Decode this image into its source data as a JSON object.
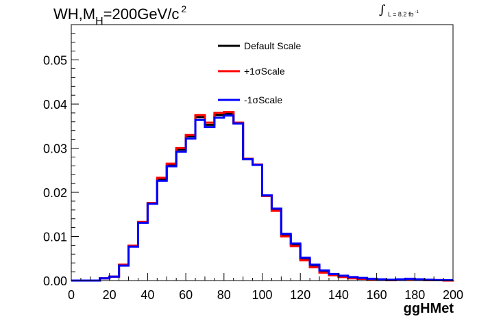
{
  "chart_data": {
    "type": "line",
    "title": {
      "prefix": "WH,M",
      "sub": "H",
      "mid": "=200GeV/c",
      "sup": "2"
    },
    "luminosity": {
      "text": "L = 8.2 fb",
      "sup": "-1"
    },
    "xlabel": "ggHMet",
    "ylabel": "",
    "xlim": [
      0,
      200
    ],
    "ylim": [
      0,
      0.058
    ],
    "xticks": [
      0,
      20,
      40,
      60,
      80,
      100,
      120,
      140,
      160,
      180,
      200
    ],
    "yticks": [
      0.0,
      0.01,
      0.02,
      0.03,
      0.04,
      0.05
    ],
    "ytick_labels": [
      "0.00",
      "0.01",
      "0.02",
      "0.03",
      "0.04",
      "0.05"
    ],
    "bin_width": 5,
    "bin_edges_start": 0,
    "legend_position": "top-center",
    "series": [
      {
        "name": "Default Scale",
        "color": "#000000",
        "values": [
          0,
          0,
          0,
          0.0005,
          0.0009,
          0.0035,
          0.0078,
          0.0132,
          0.0175,
          0.023,
          0.0262,
          0.0297,
          0.0327,
          0.037,
          0.0353,
          0.0375,
          0.0378,
          0.0357,
          0.0275,
          0.0262,
          0.0192,
          0.016,
          0.0102,
          0.008,
          0.0048,
          0.0032,
          0.002,
          0.0013,
          0.0009,
          0.0006,
          0.0004,
          0.0003,
          0.0002,
          0.0001,
          0.0002,
          0.0003,
          0.0002,
          0.0001,
          0.0001,
          0,
          0.0001
        ]
      },
      {
        "name": "+1σScale",
        "color": "#ff0000",
        "values": [
          0,
          0,
          0,
          0.0005,
          0.0009,
          0.0036,
          0.0079,
          0.0133,
          0.0176,
          0.0233,
          0.0265,
          0.03,
          0.033,
          0.0375,
          0.0358,
          0.038,
          0.0382,
          0.0358,
          0.0276,
          0.0263,
          0.0192,
          0.0158,
          0.01,
          0.0078,
          0.0046,
          0.003,
          0.0018,
          0.0012,
          0.0008,
          0.0005,
          0.0004,
          0.0003,
          0.0002,
          0.0001,
          0.0002,
          0.0002,
          0.0002,
          0.0001,
          0.0001,
          0,
          0.0001
        ]
      },
      {
        "name": "-1σScale",
        "color": "#0000ff",
        "values": [
          0,
          0,
          0,
          0.0005,
          0.0009,
          0.0034,
          0.0077,
          0.0131,
          0.0174,
          0.0226,
          0.0259,
          0.0292,
          0.0322,
          0.0364,
          0.0348,
          0.0369,
          0.0374,
          0.0356,
          0.0275,
          0.0262,
          0.0193,
          0.0163,
          0.0106,
          0.0084,
          0.0052,
          0.0036,
          0.0023,
          0.0015,
          0.0011,
          0.0008,
          0.0006,
          0.0004,
          0.0003,
          0.0002,
          0.0003,
          0.0004,
          0.0003,
          0.0002,
          0.0001,
          0.0001,
          0.0001
        ]
      }
    ]
  }
}
